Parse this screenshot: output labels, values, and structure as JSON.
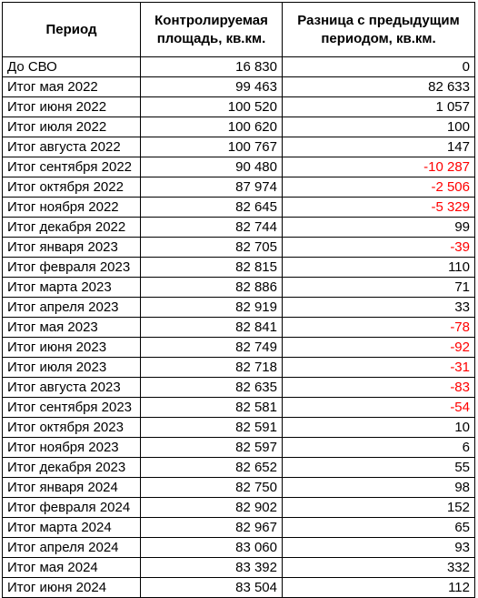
{
  "table": {
    "headers": {
      "period": "Период",
      "area": "Контролируемая площадь, кв.км.",
      "diff": "Разница с предыдущим периодом, кв.км."
    },
    "colors": {
      "negative": "#ff0000",
      "text": "#000000",
      "border": "#000000"
    },
    "rows": [
      {
        "period": "До СВО",
        "area": "16 830",
        "diff": "0"
      },
      {
        "period": "Итог мая 2022",
        "area": "99 463",
        "diff": "82 633"
      },
      {
        "period": "Итог июня 2022",
        "area": "100 520",
        "diff": "1 057"
      },
      {
        "period": "Итог июля 2022",
        "area": "100 620",
        "diff": "100"
      },
      {
        "period": "Итог августа 2022",
        "area": "100 767",
        "diff": "147"
      },
      {
        "period": "Итог сентября 2022",
        "area": "90 480",
        "diff": "-10 287"
      },
      {
        "period": "Итог октября 2022",
        "area": "87 974",
        "diff": "-2 506"
      },
      {
        "period": "Итог ноября 2022",
        "area": "82 645",
        "diff": "-5 329"
      },
      {
        "period": "Итог декабря 2022",
        "area": "82 744",
        "diff": "99"
      },
      {
        "period": "Итог января 2023",
        "area": "82 705",
        "diff": "-39"
      },
      {
        "period": "Итог февраля 2023",
        "area": "82 815",
        "diff": "110"
      },
      {
        "period": "Итог марта 2023",
        "area": "82 886",
        "diff": "71"
      },
      {
        "period": "Итог апреля 2023",
        "area": "82 919",
        "diff": "33"
      },
      {
        "period": "Итог мая 2023",
        "area": "82 841",
        "diff": "-78"
      },
      {
        "period": "Итог июня 2023",
        "area": "82 749",
        "diff": "-92"
      },
      {
        "period": "Итог июля 2023",
        "area": "82 718",
        "diff": "-31"
      },
      {
        "period": "Итог августа 2023",
        "area": "82 635",
        "diff": "-83"
      },
      {
        "period": "Итог сентября 2023",
        "area": "82 581",
        "diff": "-54"
      },
      {
        "period": "Итог октября 2023",
        "area": "82 591",
        "diff": "10"
      },
      {
        "period": "Итог ноября 2023",
        "area": "82 597",
        "diff": "6"
      },
      {
        "period": "Итог декабря 2023",
        "area": "82 652",
        "diff": "55"
      },
      {
        "period": "Итог января 2024",
        "area": "82 750",
        "diff": "98"
      },
      {
        "period": "Итог февраля 2024",
        "area": "82 902",
        "diff": "152"
      },
      {
        "period": "Итог марта 2024",
        "area": "82 967",
        "diff": "65"
      },
      {
        "period": "Итог апреля 2024",
        "area": "83 060",
        "diff": "93"
      },
      {
        "period": "Итог мая 2024",
        "area": "83 392",
        "diff": "332"
      },
      {
        "period": "Итог июня 2024",
        "area": "83 504",
        "diff": "112"
      }
    ]
  }
}
